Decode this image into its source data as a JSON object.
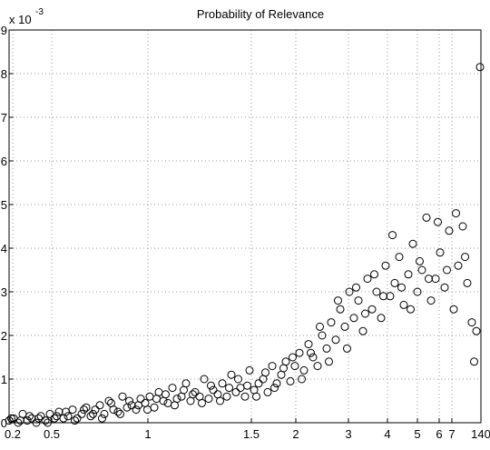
{
  "chart_data": {
    "type": "scatter",
    "title": "Probability of Relevance",
    "y_multiplier": {
      "base": "x 10",
      "exponent": "-3"
    },
    "color": "#000000",
    "grid": true,
    "xlim": [
      0,
      520
    ],
    "ylim": [
      0,
      9
    ],
    "xticks": [
      {
        "value": 4,
        "label": "0.2"
      },
      {
        "value": 47,
        "label": "0.5"
      },
      {
        "value": 153,
        "label": "1"
      },
      {
        "value": 267,
        "label": "1.5"
      },
      {
        "value": 316,
        "label": "2"
      },
      {
        "value": 374,
        "label": "3"
      },
      {
        "value": 417,
        "label": "4"
      },
      {
        "value": 450,
        "label": "5"
      },
      {
        "value": 474,
        "label": "6"
      },
      {
        "value": 488,
        "label": "7"
      },
      {
        "value": 520,
        "label": "140"
      }
    ],
    "yticks": [
      0,
      1,
      2,
      3,
      4,
      5,
      6,
      7,
      8,
      9
    ],
    "x": [
      0,
      5,
      10,
      15,
      20,
      25,
      30,
      35,
      40,
      45,
      50,
      55,
      60,
      65,
      70,
      75,
      80,
      85,
      90,
      95,
      100,
      105,
      110,
      115,
      120,
      125,
      130,
      135,
      140,
      145,
      150,
      155,
      160,
      165,
      170,
      175,
      180,
      185,
      190,
      195,
      200,
      205,
      210,
      215,
      220,
      225,
      230,
      235,
      240,
      245,
      250,
      255,
      260,
      265,
      270,
      275,
      280,
      285,
      290,
      295,
      300,
      305,
      310,
      315,
      320,
      325,
      330,
      335,
      340,
      345,
      350,
      355,
      360,
      365,
      370,
      375,
      380,
      385,
      390,
      395,
      400,
      405,
      410,
      415,
      420,
      425,
      430,
      435,
      440,
      445,
      450,
      455,
      460,
      465,
      470,
      475,
      480,
      485,
      490,
      495,
      500,
      505,
      510,
      515,
      519,
      2.5,
      12.5,
      22.5,
      32.5,
      42.5,
      52.5,
      62.5,
      72.5,
      82.5,
      92.5,
      102.5,
      112.5,
      122.5,
      132.5,
      142.5,
      152.5,
      162.5,
      172.5,
      182.5,
      192.5,
      202.5,
      212.5,
      222.5,
      232.5,
      242.5,
      252.5,
      262.5,
      272.5,
      282.5,
      292.5,
      302.5,
      312.5,
      322.5,
      332.5,
      342.5,
      352.5,
      362.5,
      372.5,
      382.5,
      392.5,
      402.5,
      412.5,
      422.5,
      432.5,
      442.5,
      452.5,
      462.5,
      472.5,
      482.5,
      492.5,
      502.5,
      512.5
    ],
    "values": [
      0.05,
      0.1,
      0,
      0.2,
      0.05,
      0.1,
      0,
      0.15,
      0.05,
      0.2,
      0.1,
      0.25,
      0.1,
      0.15,
      0.3,
      0.1,
      0.2,
      0.35,
      0.15,
      0.3,
      0.4,
      0.2,
      0.5,
      0.3,
      0.25,
      0.6,
      0.35,
      0.4,
      0.3,
      0.55,
      0.45,
      0.6,
      0.35,
      0.7,
      0.5,
      0.45,
      0.8,
      0.55,
      0.6,
      0.9,
      0.5,
      0.7,
      0.6,
      1.0,
      0.55,
      0.75,
      0.65,
      0.9,
      0.6,
      1.1,
      0.7,
      0.8,
      0.6,
      1.2,
      0.75,
      0.9,
      1.0,
      0.7,
      1.3,
      0.9,
      1.1,
      1.4,
      0.95,
      1.3,
      1.6,
      1.2,
      1.8,
      1.5,
      1.3,
      2.0,
      1.7,
      2.3,
      1.9,
      2.6,
      2.2,
      3.0,
      2.4,
      2.8,
      2.1,
      3.3,
      2.6,
      3.0,
      2.4,
      3.6,
      2.9,
      3.2,
      3.8,
      2.7,
      3.4,
      4.1,
      3.0,
      3.5,
      4.7,
      2.8,
      3.3,
      3.9,
      3.1,
      4.4,
      2.6,
      3.6,
      4.5,
      3.2,
      2.3,
      2.1,
      8.15,
      0.1,
      0.05,
      0.15,
      0.1,
      0,
      0.15,
      0.25,
      0.05,
      0.3,
      0.2,
      0.1,
      0.45,
      0.2,
      0.5,
      0.4,
      0.3,
      0.55,
      0.65,
      0.4,
      0.75,
      0.65,
      0.45,
      0.85,
      0.5,
      0.8,
      1.0,
      0.85,
      0.6,
      1.15,
      0.8,
      1.25,
      1.5,
      1.0,
      1.6,
      2.2,
      1.4,
      2.8,
      1.7,
      3.1,
      2.5,
      3.4,
      2.9,
      4.3,
      3.1,
      2.6,
      3.7,
      3.3,
      4.6,
      3.5,
      4.8,
      3.8,
      1.4
    ]
  }
}
